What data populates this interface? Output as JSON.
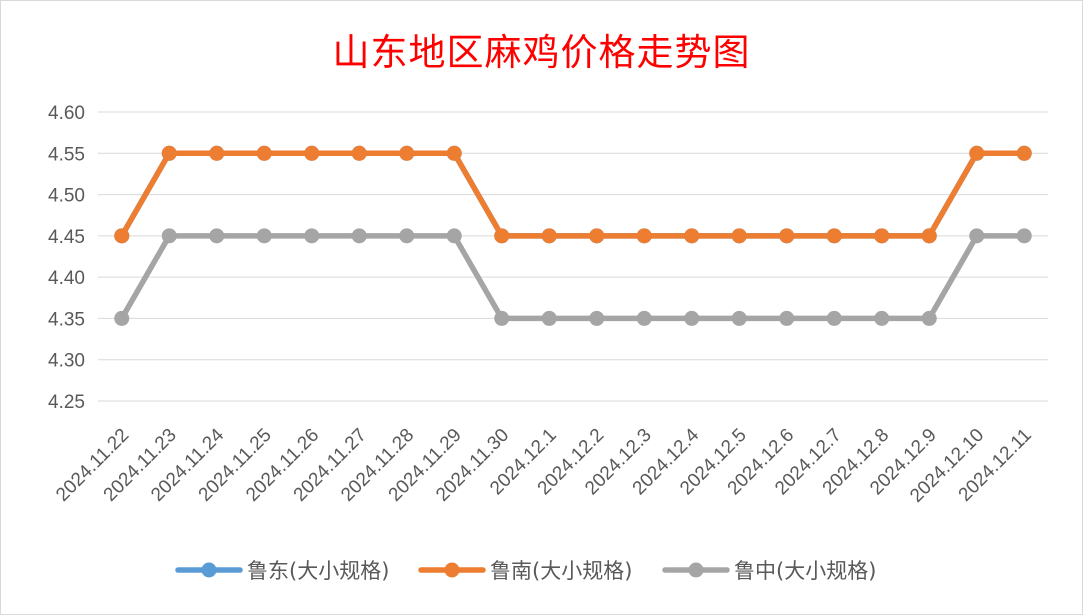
{
  "chart_data": {
    "type": "line",
    "title": "山东地区麻鸡价格走势图",
    "xlabel": "",
    "ylabel": "",
    "categories": [
      "2024.11.22",
      "2024.11.23",
      "2024.11.24",
      "2024.11.25",
      "2024.11.26",
      "2024.11.27",
      "2024.11.28",
      "2024.11.29",
      "2024.11.30",
      "2024.12.1",
      "2024.12.2",
      "2024.12.3",
      "2024.12.4",
      "2024.12.5",
      "2024.12.6",
      "2024.12.7",
      "2024.12.8",
      "2024.12.9",
      "2024.12.10",
      "2024.12.11"
    ],
    "ylim": [
      4.25,
      4.6
    ],
    "yticks": [
      "4.60",
      "4.55",
      "4.50",
      "4.45",
      "4.40",
      "4.35",
      "4.30",
      "4.25"
    ],
    "grid": true,
    "legend_position": "bottom",
    "series": [
      {
        "name": "鲁东(大小规格)",
        "color": "#5b9bd5",
        "values": [
          4.45,
          4.55,
          4.55,
          4.55,
          4.55,
          4.55,
          4.55,
          4.55,
          4.45,
          4.45,
          4.45,
          4.45,
          4.45,
          4.45,
          4.45,
          4.45,
          4.45,
          4.45,
          4.55,
          4.55
        ]
      },
      {
        "name": "鲁南(大小规格)",
        "color": "#ed7d31",
        "values": [
          4.45,
          4.55,
          4.55,
          4.55,
          4.55,
          4.55,
          4.55,
          4.55,
          4.45,
          4.45,
          4.45,
          4.45,
          4.45,
          4.45,
          4.45,
          4.45,
          4.45,
          4.45,
          4.55,
          4.55
        ]
      },
      {
        "name": "鲁中(大小规格)",
        "color": "#a5a5a5",
        "values": [
          4.35,
          4.45,
          4.45,
          4.45,
          4.45,
          4.45,
          4.45,
          4.45,
          4.35,
          4.35,
          4.35,
          4.35,
          4.35,
          4.35,
          4.35,
          4.35,
          4.35,
          4.35,
          4.45,
          4.45
        ]
      }
    ]
  }
}
